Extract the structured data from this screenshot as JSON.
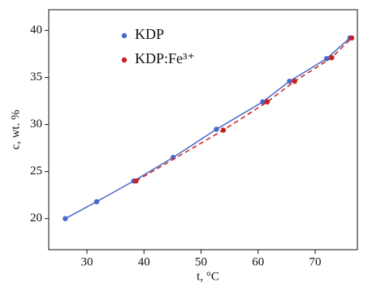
{
  "chart_data": {
    "type": "scatter",
    "x_label": "t, °C",
    "y_label": "c, wt. %",
    "xlim": [
      23.3,
      77.4
    ],
    "ylim": [
      16.7,
      42.2
    ],
    "xticks": [
      30,
      40,
      50,
      60,
      70
    ],
    "yticks": [
      20,
      25,
      30,
      35,
      40
    ],
    "legend": "upper left",
    "series": [
      {
        "name": "KDP",
        "color": "#4a68c8",
        "line": "solid",
        "x": [
          26.2,
          31.7,
          38.2,
          45.1,
          52.7,
          60.8,
          65.5,
          72.0,
          76.1
        ],
        "values": [
          20.0,
          21.8,
          24.0,
          26.5,
          29.5,
          32.4,
          34.6,
          37.0,
          39.2
        ]
      },
      {
        "name": "KDP:Fe³⁺",
        "color": "#cc1f1f",
        "line": "dashed",
        "x": [
          38.6,
          53.9,
          61.6,
          66.4,
          72.9,
          76.4
        ],
        "values": [
          24.0,
          29.4,
          32.4,
          34.6,
          37.1,
          39.2
        ]
      }
    ]
  }
}
